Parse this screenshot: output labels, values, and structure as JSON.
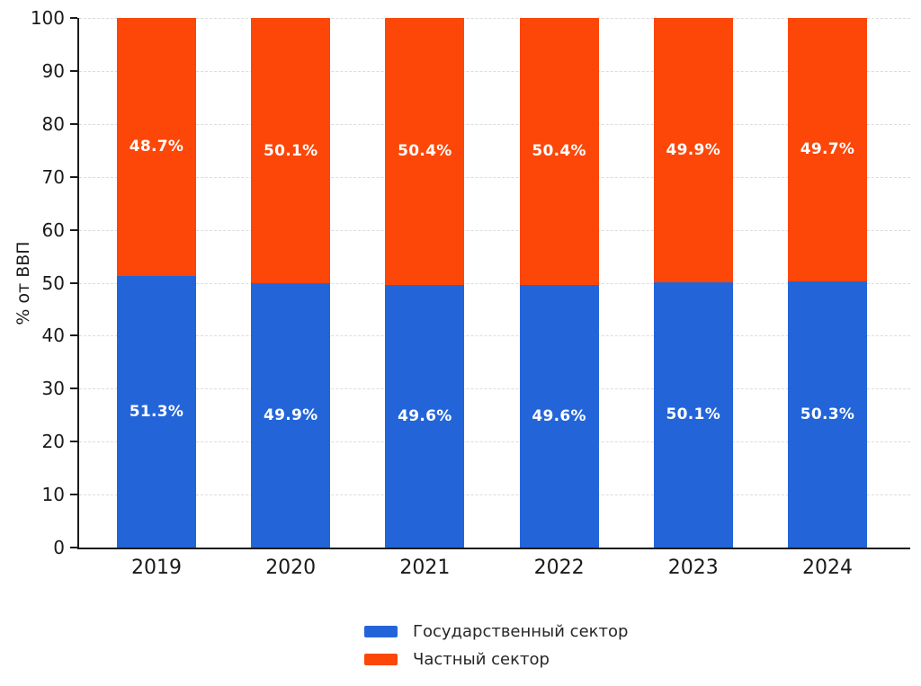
{
  "chart_data": {
    "type": "bar",
    "stacked": true,
    "title": "",
    "xlabel": "",
    "ylabel": "% от ВВП",
    "ylim": [
      0,
      100
    ],
    "yticks": [
      0,
      10,
      20,
      30,
      40,
      50,
      60,
      70,
      80,
      90,
      100
    ],
    "grid": true,
    "grid_style": "dashed",
    "grid_color": "#dcdcdc",
    "categories": [
      "2019",
      "2020",
      "2021",
      "2022",
      "2023",
      "2024"
    ],
    "series": [
      {
        "name": "Государственный сектор",
        "color": "#2365d9",
        "stack_position": "bottom",
        "values": [
          51.3,
          49.9,
          49.6,
          49.6,
          50.1,
          50.3
        ],
        "labels": [
          "51.3%",
          "49.9%",
          "49.6%",
          "49.6%",
          "50.1%",
          "50.3%"
        ]
      },
      {
        "name": "Частный сектор",
        "color": "#fc4708",
        "stack_position": "top",
        "values": [
          48.7,
          50.1,
          50.4,
          50.4,
          49.9,
          49.7
        ],
        "labels": [
          "48.7%",
          "50.1%",
          "50.4%",
          "50.4%",
          "49.9%",
          "49.7%"
        ]
      }
    ],
    "bar_label_color": "#ffffff",
    "axis_color": "#1a1a1a",
    "legend_position": "bottom-center",
    "legend_frame": false
  }
}
